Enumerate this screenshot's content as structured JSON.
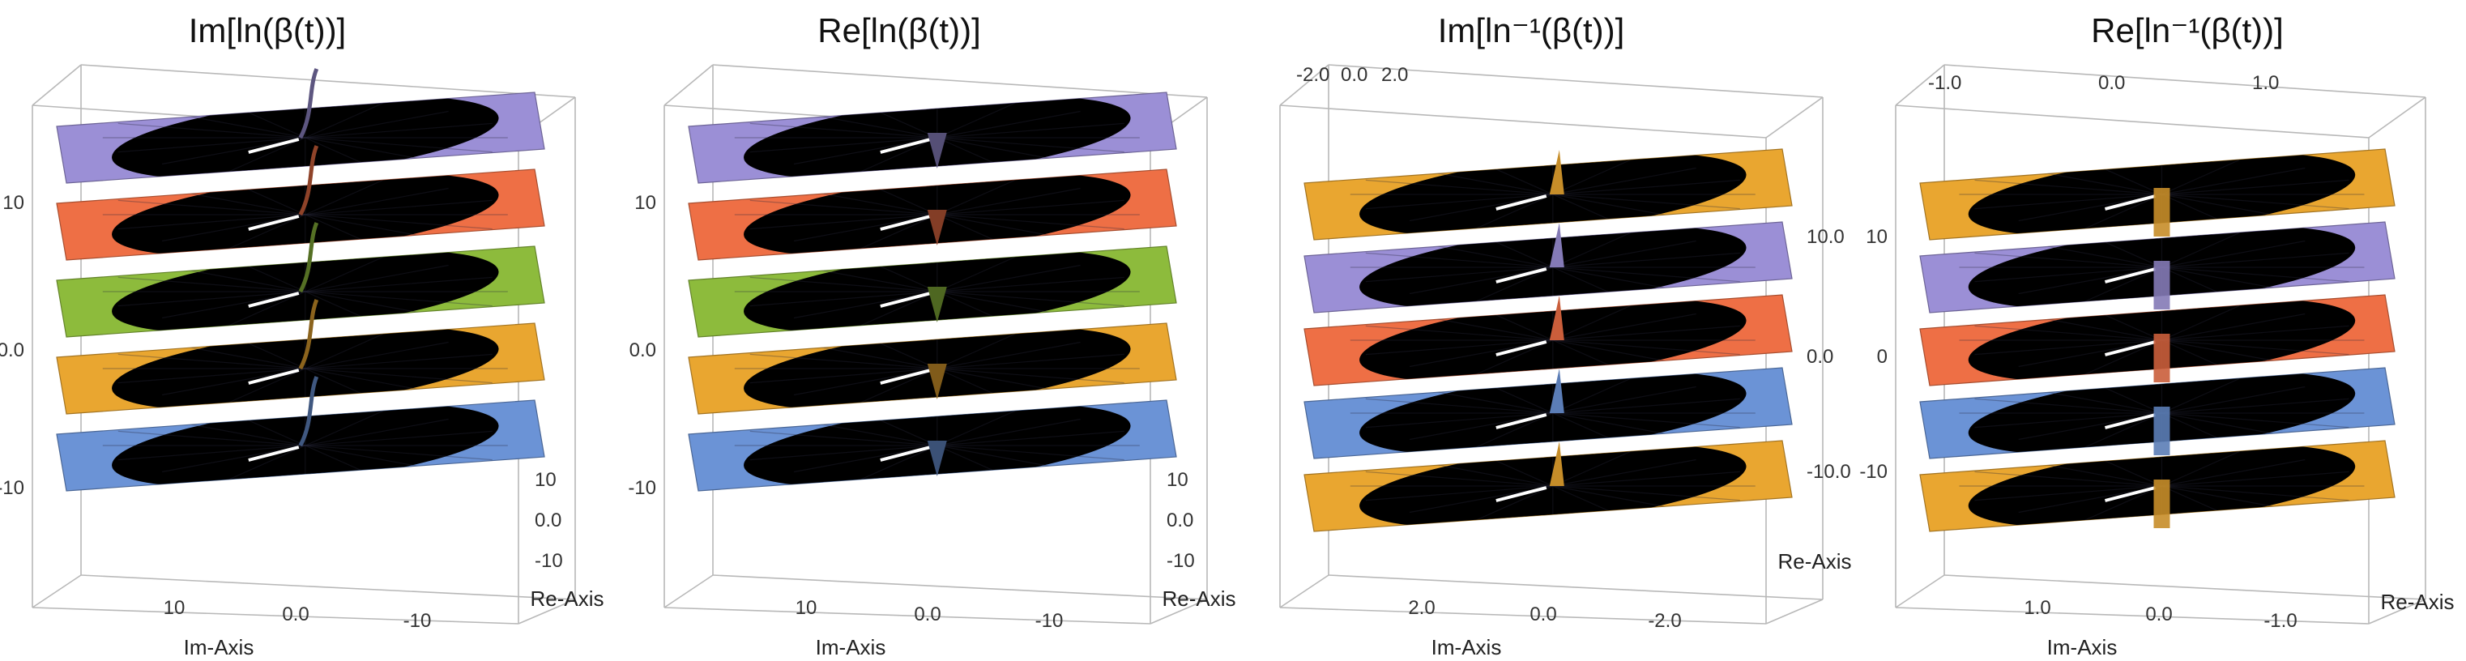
{
  "colors": {
    "purple": "#9b8fd6",
    "orange_red": "#ee6f45",
    "green": "#8dbb3c",
    "amber": "#e9a630",
    "blue": "#6b93d6",
    "dark": "#3a3a48",
    "box": "#b8b8b8"
  },
  "panels": [
    {
      "title": "Im[ln(β(t))]",
      "vertical_ticks": [
        "10",
        "0.0",
        "-10"
      ],
      "bottom_ticks": [
        "10",
        "0.0",
        "-10"
      ],
      "side_ticks": [
        "10",
        "0.0",
        "-10"
      ],
      "bottom_axis_label": "Im-Axis",
      "side_axis_label": "Re-Axis",
      "top_ticks": [],
      "sheets": [
        "purple",
        "orange_red",
        "green",
        "amber",
        "blue"
      ]
    },
    {
      "title": "Re[ln(β(t))]",
      "vertical_ticks": [
        "10",
        "0.0",
        "-10"
      ],
      "bottom_ticks": [
        "10",
        "0.0",
        "-10"
      ],
      "side_ticks": [
        "10",
        "0.0",
        "-10"
      ],
      "bottom_axis_label": "Im-Axis",
      "side_axis_label": "Re-Axis",
      "top_ticks": [],
      "sheets": [
        "purple",
        "orange_red",
        "green",
        "amber",
        "blue"
      ]
    },
    {
      "title": "Im[ln⁻¹(β(t))]",
      "vertical_ticks": [
        "10.0",
        "0.0",
        "-10.0"
      ],
      "bottom_ticks": [
        "2.0",
        "0.0",
        "-2.0"
      ],
      "side_ticks": [],
      "bottom_axis_label": "Im-Axis",
      "side_axis_label": "Re-Axis",
      "top_ticks": [
        "-2.0",
        "0.0",
        "2.0"
      ],
      "sheets": [
        "amber",
        "purple",
        "orange_red",
        "blue",
        "amber"
      ]
    },
    {
      "title": "Re[ln⁻¹(β(t))]",
      "vertical_ticks": [
        "10",
        "0",
        "-10"
      ],
      "bottom_ticks": [
        "1.0",
        "0.0",
        "-1.0"
      ],
      "side_ticks": [],
      "bottom_axis_label": "Im-Axis",
      "side_axis_label": "Re-Axis",
      "top_ticks": [
        "-1.0",
        "0.0",
        "1.0"
      ],
      "sheets": [
        "amber",
        "purple",
        "orange_red",
        "blue",
        "amber"
      ]
    }
  ]
}
